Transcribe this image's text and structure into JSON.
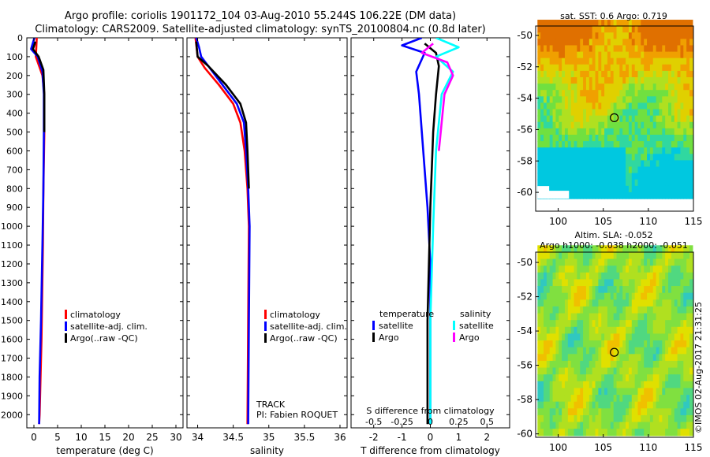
{
  "header": {
    "line1": "Argo profile: coriolis 1901172_104 03-Aug-2010 55.244S 106.22E (DM data)",
    "line2": "Climatology: CARS2009. Satellite-adjusted climatology: synTS_20100804.nc (0.8d later)"
  },
  "colors": {
    "climatology": "#ff0000",
    "satellite": "#0000ff",
    "argo": "#000000",
    "sal_satellite": "#00ffff",
    "sal_argo": "#ff00ff"
  },
  "chart_data": [
    {
      "type": "line",
      "id": "temperature",
      "xlabel": "temperature (deg C)",
      "ylabel": "",
      "xlim": [
        -1.5,
        31.5
      ],
      "ylim": [
        2070,
        0
      ],
      "xticks": [
        0,
        5,
        10,
        15,
        20,
        25,
        30
      ],
      "yticks": [
        0,
        100,
        200,
        300,
        400,
        500,
        600,
        700,
        800,
        900,
        1000,
        1100,
        1200,
        1300,
        1400,
        1500,
        1600,
        1700,
        1800,
        1900,
        2000
      ],
      "legend": [
        "climatology",
        "satellite-adj. clim.",
        "Argo(..raw -QC)"
      ],
      "series": [
        {
          "name": "climatology",
          "color": "#ff0000",
          "points": [
            [
              0.6,
              0
            ],
            [
              0.4,
              100
            ],
            [
              1.8,
              200
            ],
            [
              2.2,
              300
            ],
            [
              2.2,
              500
            ],
            [
              2.0,
              800
            ],
            [
              1.9,
              1100
            ],
            [
              1.6,
              1600
            ],
            [
              1.2,
              2000
            ],
            [
              1.1,
              2050
            ]
          ]
        },
        {
          "name": "satellite-adj. clim.",
          "color": "#0000ff",
          "points": [
            [
              0.1,
              0
            ],
            [
              -0.6,
              60
            ],
            [
              0.8,
              100
            ],
            [
              1.8,
              180
            ],
            [
              2.1,
              300
            ],
            [
              2.1,
              500
            ],
            [
              2.0,
              800
            ],
            [
              1.8,
              1100
            ],
            [
              1.5,
              1500
            ],
            [
              1.2,
              1800
            ],
            [
              1.1,
              2050
            ]
          ]
        },
        {
          "name": "Argo(..raw -QC)",
          "color": "#000000",
          "points": [
            [
              0.3,
              20
            ],
            [
              -0.2,
              60
            ],
            [
              1.0,
              100
            ],
            [
              2.0,
              170
            ],
            [
              2.2,
              300
            ],
            [
              2.2,
              500
            ]
          ]
        }
      ]
    },
    {
      "type": "line",
      "id": "salinity",
      "xlabel": "salinity",
      "ylabel": "",
      "xlim": [
        33.85,
        36.1
      ],
      "xticks": [
        34,
        34.5,
        35,
        35.5,
        36
      ],
      "legend": [
        "climatology",
        "satellite-adj. clim.",
        "Argo(..raw -QC)"
      ],
      "annotation": [
        "TRACK",
        "PI: Fabien ROQUET"
      ],
      "series": [
        {
          "name": "climatology",
          "color": "#ff0000",
          "points": [
            [
              33.97,
              0
            ],
            [
              34.0,
              100
            ],
            [
              34.1,
              160
            ],
            [
              34.3,
              250
            ],
            [
              34.5,
              350
            ],
            [
              34.6,
              450
            ],
            [
              34.66,
              600
            ],
            [
              34.7,
              800
            ],
            [
              34.72,
              1000
            ],
            [
              34.71,
              1500
            ],
            [
              34.7,
              2050
            ]
          ]
        },
        {
          "name": "satellite-adj. clim.",
          "color": "#0000ff",
          "points": [
            [
              33.98,
              0
            ],
            [
              34.02,
              50
            ],
            [
              34.05,
              100
            ],
            [
              34.15,
              150
            ],
            [
              34.35,
              250
            ],
            [
              34.55,
              350
            ],
            [
              34.65,
              450
            ],
            [
              34.68,
              600
            ],
            [
              34.71,
              800
            ],
            [
              34.73,
              1000
            ],
            [
              34.72,
              1500
            ],
            [
              34.71,
              2050
            ]
          ]
        },
        {
          "name": "Argo(..raw -QC)",
          "color": "#000000",
          "points": [
            [
              33.98,
              20
            ],
            [
              34.0,
              100
            ],
            [
              34.15,
              150
            ],
            [
              34.4,
              250
            ],
            [
              34.6,
              350
            ],
            [
              34.68,
              450
            ],
            [
              34.7,
              600
            ],
            [
              34.72,
              800
            ]
          ]
        }
      ]
    },
    {
      "type": "line",
      "id": "difference",
      "xlabel": "T difference from climatology",
      "ylabel": "",
      "top_label": "S difference from climatology",
      "xlim": [
        -2.8,
        2.8
      ],
      "xticks": [
        -2,
        -1,
        0,
        1,
        2
      ],
      "top_ticks": [
        [
          "-0.5",
          -2
        ],
        [
          "-0.25",
          -1
        ],
        [
          "0",
          0
        ],
        [
          "0.25",
          1
        ],
        [
          "0.5",
          2
        ]
      ],
      "legend_temperature": {
        "title": "temperature",
        "items": [
          "satellite",
          "Argo"
        ]
      },
      "legend_salinity": {
        "title": "salinity",
        "items": [
          "satellite",
          "Argo"
        ]
      },
      "series": [
        {
          "name": "temperature satellite",
          "color": "#0000ff",
          "points": [
            [
              -0.3,
              0
            ],
            [
              -1.0,
              40
            ],
            [
              -0.2,
              80
            ],
            [
              -0.5,
              180
            ],
            [
              -0.4,
              300
            ],
            [
              -0.3,
              500
            ],
            [
              -0.1,
              900
            ],
            [
              0,
              1200
            ],
            [
              0,
              2050
            ]
          ]
        },
        {
          "name": "temperature Argo",
          "color": "#000000",
          "points": [
            [
              -0.2,
              30
            ],
            [
              0.2,
              80
            ],
            [
              0.3,
              150
            ],
            [
              0.2,
              300
            ],
            [
              0.1,
              500
            ],
            [
              0,
              900
            ],
            [
              -0.1,
              1500
            ],
            [
              -0.1,
              2050
            ]
          ]
        },
        {
          "name": "salinity satellite",
          "color": "#00ffff",
          "points": [
            [
              0.2,
              0
            ],
            [
              1.0,
              50
            ],
            [
              0.2,
              100
            ],
            [
              0.8,
              180
            ],
            [
              0.4,
              300
            ],
            [
              0.2,
              600
            ],
            [
              0.1,
              1000
            ],
            [
              0,
              1500
            ],
            [
              0,
              2050
            ]
          ]
        },
        {
          "name": "salinity Argo",
          "color": "#ff00ff",
          "points": [
            [
              0.1,
              30
            ],
            [
              -0.3,
              80
            ],
            [
              0.6,
              130
            ],
            [
              0.8,
              200
            ],
            [
              0.5,
              300
            ],
            [
              0.3,
              600
            ]
          ]
        }
      ]
    },
    {
      "type": "heatmap",
      "id": "sst_map",
      "title": "sat. SST: 0.6 Argo: 0.719",
      "xlim": [
        97.5,
        115
      ],
      "ylim": [
        -61.2,
        -49.4
      ],
      "xticks": [
        100,
        105,
        110,
        115
      ],
      "yticks": [
        -50,
        -52,
        -54,
        -56,
        -58,
        -60
      ],
      "marker": [
        106.22,
        -55.244
      ],
      "palette": [
        "#00c8e0",
        "#30d8a0",
        "#70e040",
        "#b0e020",
        "#e0d000",
        "#f0a000",
        "#e07000"
      ]
    },
    {
      "type": "heatmap",
      "id": "sla_map",
      "title": "Altim. SLA: -0.052",
      "subtitle": "Argo h1000: -0.038 h2000: -0.051",
      "xlim": [
        97.5,
        115
      ],
      "ylim": [
        -60.2,
        -49.4
      ],
      "xticks": [
        100,
        105,
        110,
        115
      ],
      "yticks": [
        -50,
        -52,
        -54,
        -56,
        -58,
        -60
      ],
      "marker": [
        106.22,
        -55.244
      ],
      "palette": [
        "#30c8c0",
        "#50d880",
        "#80e040",
        "#b0e020",
        "#e0e000",
        "#f0c000"
      ]
    }
  ],
  "watermark": "©IMOS 02-Aug-2017 21:31:25"
}
